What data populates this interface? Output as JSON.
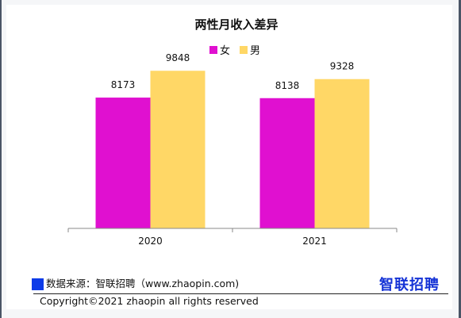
{
  "colors": {
    "female": "#e010d0",
    "male": "#ffd766",
    "brand": "#1533d6",
    "source_marker": "#0d3be8"
  },
  "chart_data": {
    "type": "bar",
    "title": "两性月收入差异",
    "categories": [
      "2020",
      "2021"
    ],
    "series": [
      {
        "name": "女",
        "values": [
          8173,
          8138
        ],
        "color": "#e010d0"
      },
      {
        "name": "男",
        "values": [
          9848,
          9328
        ],
        "color": "#ffd766"
      }
    ],
    "xlabel": "",
    "ylabel": "",
    "ylim": [
      0,
      11000
    ],
    "legend_position": "top-center",
    "grid": false,
    "data_labels": true
  },
  "footer": {
    "source": "数据来源：智联招聘（www.zhaopin.com)",
    "brand_logo": "智联招聘",
    "copyright": "Copyright©2021 zhaopin all rights reserved"
  }
}
